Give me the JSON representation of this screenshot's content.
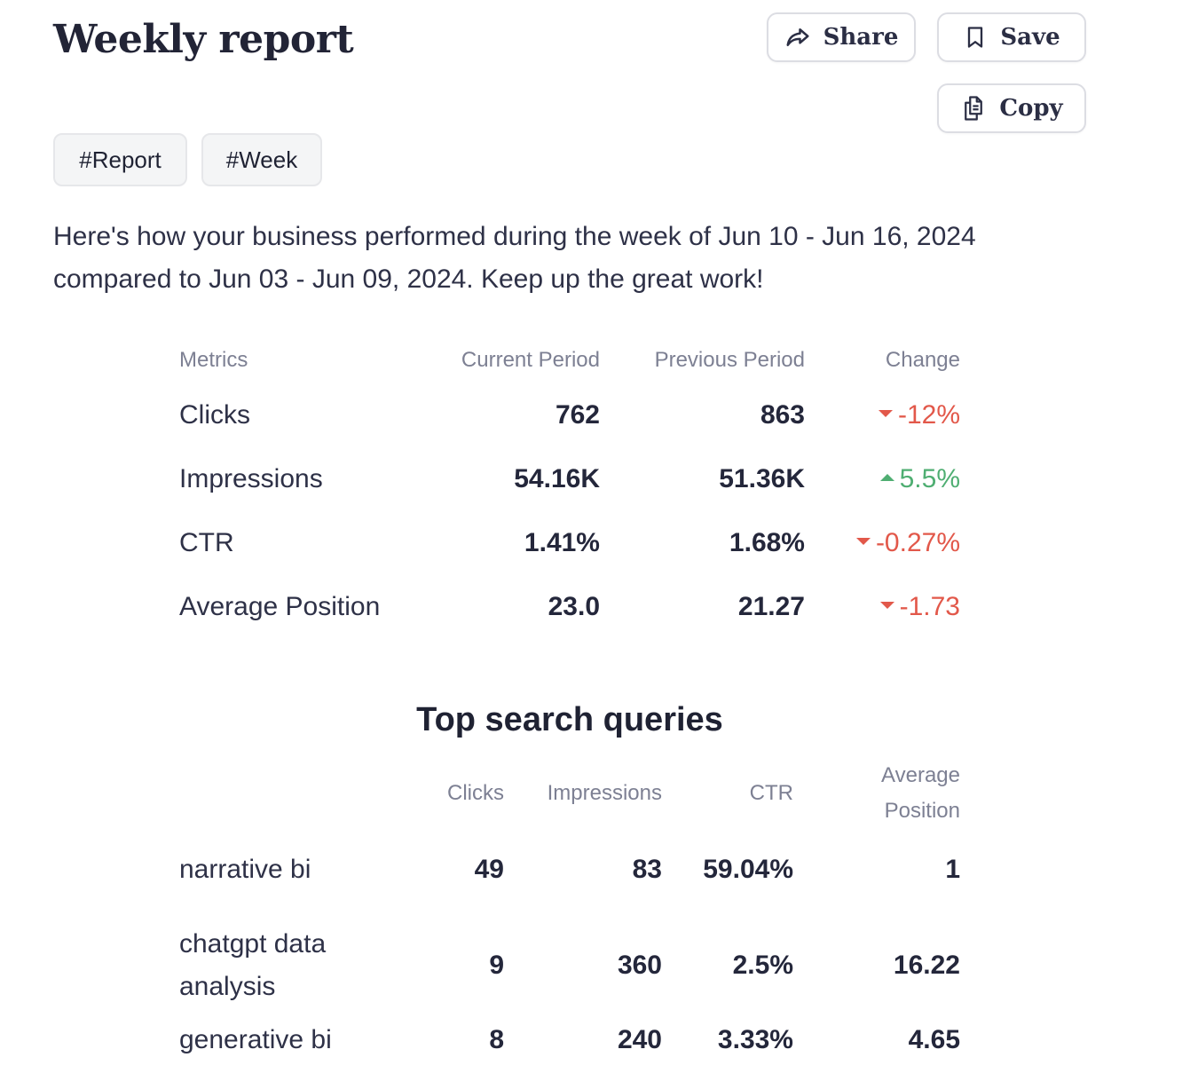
{
  "header": {
    "title": "Weekly report",
    "share_label": "Share",
    "save_label": "Save",
    "copy_label": "Copy"
  },
  "tags": [
    "#Report",
    "#Week"
  ],
  "intro": "Here's how your business performed during the week of Jun 10 - Jun 16, 2024 compared to Jun 03 - Jun 09, 2024. Keep up the great work!",
  "metrics": {
    "columns": [
      "Metrics",
      "Current Period",
      "Previous Period",
      "Change"
    ],
    "rows": [
      {
        "name": "Clicks",
        "current": "762",
        "previous": "863",
        "change": "-12%",
        "direction": "down"
      },
      {
        "name": "Impressions",
        "current": "54.16K",
        "previous": "51.36K",
        "change": "5.5%",
        "direction": "up"
      },
      {
        "name": "CTR",
        "current": "1.41%",
        "previous": "1.68%",
        "change": "-0.27%",
        "direction": "down"
      },
      {
        "name": "Average Position",
        "current": "23.0",
        "previous": "21.27",
        "change": "-1.73",
        "direction": "down"
      }
    ]
  },
  "queries": {
    "title": "Top search queries",
    "columns": [
      "Clicks",
      "Impressions",
      "CTR",
      "Average Position"
    ],
    "rows": [
      {
        "query": "narrative bi",
        "clicks": "49",
        "impressions": "83",
        "ctr": "59.04%",
        "position": "1"
      },
      {
        "query": "chatgpt data analysis",
        "clicks": "9",
        "impressions": "360",
        "ctr": "2.5%",
        "position": "16.22"
      },
      {
        "query": "generative bi",
        "clicks": "8",
        "impressions": "240",
        "ctr": "3.33%",
        "position": "4.65"
      }
    ]
  },
  "colors": {
    "down": "#e2584a",
    "up": "#4fae72",
    "title": "#222436"
  }
}
